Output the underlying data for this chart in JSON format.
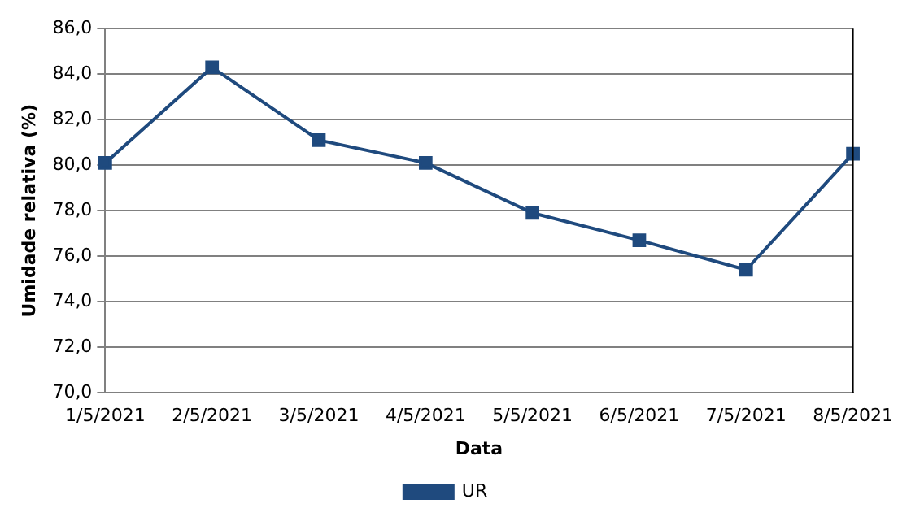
{
  "chart_data": {
    "type": "line",
    "xlabel": "Data",
    "ylabel": "Umidade relativa (%)",
    "categories": [
      "1/5/2021",
      "2/5/2021",
      "3/5/2021",
      "4/5/2021",
      "5/5/2021",
      "6/5/2021",
      "7/5/2021",
      "8/5/2021"
    ],
    "series": [
      {
        "name": "UR",
        "color": "#1f4a7e",
        "values": [
          80.1,
          84.3,
          81.1,
          80.1,
          77.9,
          76.7,
          75.4,
          80.5
        ]
      }
    ],
    "ylim": [
      70,
      86
    ],
    "yticks": [
      {
        "value": 70,
        "label": "70,0"
      },
      {
        "value": 72,
        "label": "72,0"
      },
      {
        "value": 74,
        "label": "74,0"
      },
      {
        "value": 76,
        "label": "76,0"
      },
      {
        "value": 78,
        "label": "78,0"
      },
      {
        "value": 80,
        "label": "80,0"
      },
      {
        "value": 82,
        "label": "82,0"
      },
      {
        "value": 84,
        "label": "84,0"
      },
      {
        "value": 86,
        "label": "86,0"
      }
    ],
    "grid": "y",
    "legend": "bottom",
    "marker": "square",
    "line_style": "solid"
  }
}
